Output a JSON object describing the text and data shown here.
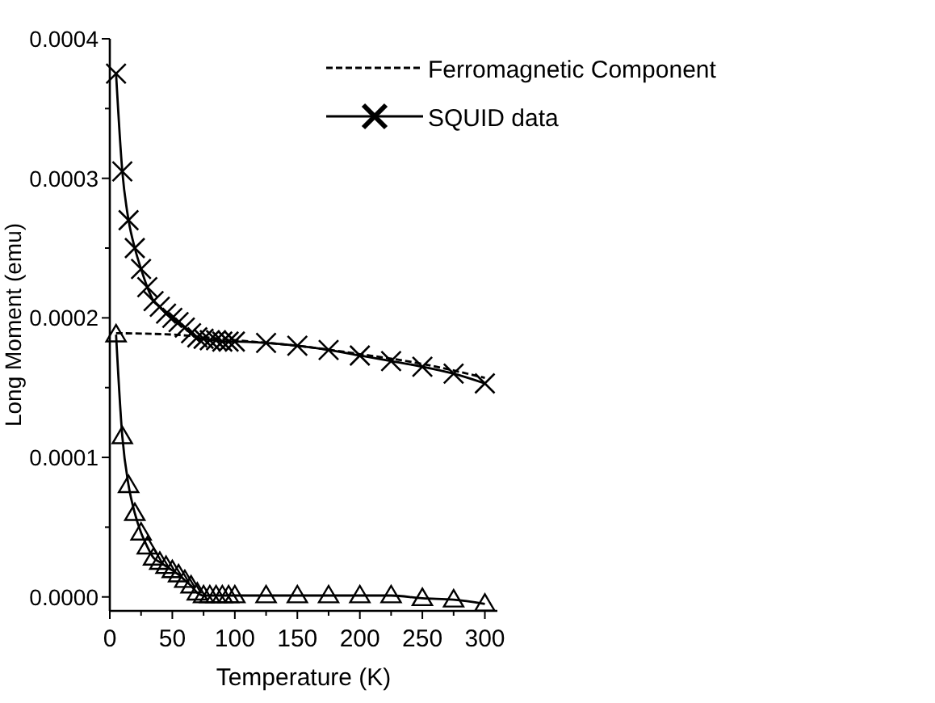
{
  "chart_data": {
    "type": "line",
    "xlabel": "Temperature (K)",
    "ylabel": "Long Moment (emu)",
    "xlim": [
      0,
      310
    ],
    "ylim": [
      -1e-05,
      0.0004
    ],
    "xticks": [
      0,
      {
        "value": 25,
        "label": null
      },
      50,
      {
        "value": 75,
        "label": null
      },
      100,
      {
        "value": 125,
        "label": null
      },
      150,
      {
        "value": 175,
        "label": null
      },
      200,
      {
        "value": 225,
        "label": null
      },
      250,
      {
        "value": 275,
        "label": null
      },
      300
    ],
    "yticks": [
      {
        "value": 0,
        "label": "0.0000"
      },
      {
        "value": 5e-05,
        "label": null
      },
      {
        "value": 0.0001,
        "label": "0.0001"
      },
      {
        "value": 0.00015,
        "label": null
      },
      {
        "value": 0.0002,
        "label": "0.0002"
      },
      {
        "value": 0.00025,
        "label": null
      },
      {
        "value": 0.0003,
        "label": "0.0003"
      },
      {
        "value": 0.00035,
        "label": null
      },
      {
        "value": 0.0004,
        "label": "0.0004"
      }
    ],
    "legend": "top right",
    "grid": false,
    "series": [
      {
        "name": "Ferromagnetic Component",
        "color": "#000000",
        "marker": "none",
        "line_style": "dashed",
        "x": [
          5,
          50,
          100,
          150,
          200,
          250,
          300
        ],
        "values": [
          0.000189,
          0.000188,
          0.000184,
          0.00018,
          0.000174,
          0.000167,
          0.000157
        ]
      },
      {
        "name": "SQUID data",
        "color": "#000000",
        "marker": "cross",
        "line_style": "solid",
        "x": [
          5,
          10,
          15,
          20,
          25,
          30,
          35,
          40,
          45,
          50,
          55,
          60,
          65,
          70,
          75,
          80,
          85,
          90,
          95,
          100,
          125,
          150,
          175,
          200,
          225,
          250,
          275,
          300
        ],
        "values": [
          0.000375,
          0.000305,
          0.00027,
          0.00025,
          0.000235,
          0.000222,
          0.000212,
          0.000208,
          0.000203,
          0.0002,
          0.000197,
          0.000193,
          0.000189,
          0.000186,
          0.000185,
          0.000184,
          0.000184,
          0.000183,
          0.000183,
          0.000183,
          0.000182,
          0.00018,
          0.000177,
          0.000173,
          0.000169,
          0.000165,
          0.00016,
          0.000153
        ]
      },
      {
        "color": "#000000",
        "marker": "triangle",
        "line_style": "solid",
        "x": [
          5,
          10,
          15,
          20,
          25,
          30,
          35,
          40,
          45,
          50,
          55,
          60,
          65,
          70,
          75,
          80,
          85,
          90,
          95,
          100,
          125,
          150,
          175,
          200,
          225,
          250,
          275,
          300
        ],
        "values": [
          0.000188,
          0.000115,
          8e-05,
          6e-05,
          4.6e-05,
          3.6e-05,
          2.8e-05,
          2.5e-05,
          2.2e-05,
          1.9e-05,
          1.6e-05,
          1.2e-05,
          8e-06,
          3e-06,
          1e-06,
          1e-06,
          1e-06,
          1e-06,
          1e-06,
          1e-06,
          1e-06,
          1e-06,
          1e-06,
          1e-06,
          1e-06,
          -1e-06,
          -2e-06,
          -5e-06
        ]
      }
    ]
  }
}
